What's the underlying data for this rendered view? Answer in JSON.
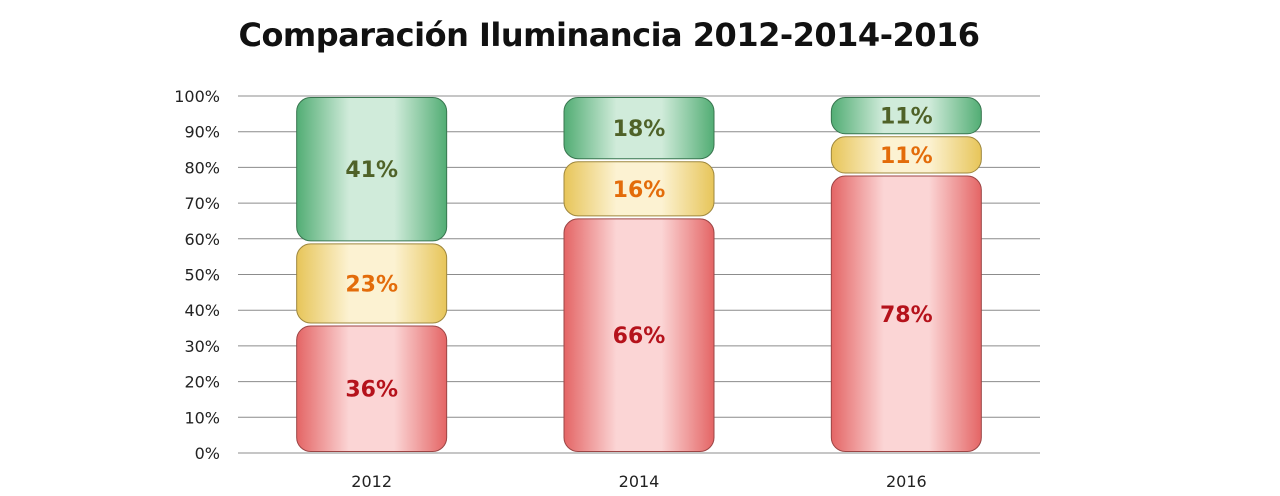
{
  "chart_data": {
    "type": "bar",
    "stacked": true,
    "title": "Comparación Iluminancia 2012-2014-2016",
    "categories": [
      "2012",
      "2014",
      "2016"
    ],
    "series": [
      {
        "values": [
          36,
          66,
          78
        ],
        "labels": [
          "36%",
          "66%",
          "78%"
        ],
        "color": "#f06a6a",
        "label_color": "#b5121b"
      },
      {
        "values": [
          23,
          16,
          11
        ],
        "labels": [
          "23%",
          "16%",
          "11%"
        ],
        "color": "#f3cf5e",
        "label_color": "#e36c0a"
      },
      {
        "values": [
          41,
          18,
          11
        ],
        "labels": [
          "41%",
          "18%",
          "11%"
        ],
        "color": "#56b67a",
        "label_color": "#4f6228"
      }
    ],
    "ylim": [
      0,
      100
    ],
    "yticks": [
      "0%",
      "10%",
      "20%",
      "30%",
      "40%",
      "50%",
      "60%",
      "70%",
      "80%",
      "90%",
      "100%"
    ],
    "grid": true,
    "legend": "none"
  }
}
